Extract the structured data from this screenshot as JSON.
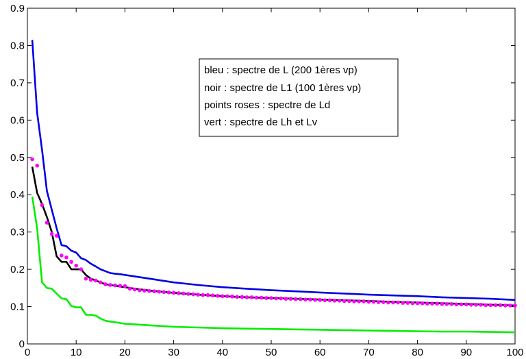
{
  "chart_data": {
    "type": "line",
    "title": "",
    "xlabel": "",
    "ylabel": "",
    "xlim": [
      0,
      100
    ],
    "ylim": [
      0,
      0.9
    ],
    "x_ticks": [
      "0",
      "10",
      "20",
      "30",
      "40",
      "50",
      "60",
      "70",
      "80",
      "90",
      "100"
    ],
    "y_ticks": [
      "0",
      "0.1",
      "0.2",
      "0.3",
      "0.4",
      "0.5",
      "0.6",
      "0.7",
      "0.8",
      "0.9"
    ],
    "grid": false,
    "legend_position": "upper-center",
    "legend": [
      "bleu : spectre de L (200 1ères vp)",
      "noir : spectre de L1 (100 1ères vp)",
      "points roses : spectre de Ld",
      "vert : spectre de Lh et Lv"
    ],
    "series": [
      {
        "color": "#0000e6",
        "style": "line",
        "x": [
          1,
          2,
          3,
          4,
          5,
          6,
          7,
          8,
          9,
          10,
          11,
          12,
          13,
          14,
          15,
          16,
          17,
          18,
          19,
          20,
          25,
          30,
          35,
          40,
          45,
          50,
          55,
          60,
          65,
          70,
          75,
          80,
          85,
          90,
          95,
          100
        ],
        "values": [
          0.815,
          0.62,
          0.52,
          0.41,
          0.36,
          0.31,
          0.265,
          0.262,
          0.25,
          0.245,
          0.23,
          0.225,
          0.215,
          0.208,
          0.2,
          0.195,
          0.19,
          0.188,
          0.187,
          0.185,
          0.175,
          0.165,
          0.158,
          0.152,
          0.148,
          0.144,
          0.141,
          0.138,
          0.135,
          0.132,
          0.13,
          0.128,
          0.125,
          0.123,
          0.121,
          0.118
        ]
      },
      {
        "color": "#000000",
        "style": "line",
        "x": [
          1,
          2,
          3,
          4,
          5,
          6,
          7,
          8,
          9,
          10,
          11,
          12,
          13,
          14,
          15,
          16,
          17,
          18,
          19,
          20,
          22,
          25,
          30,
          35,
          40,
          45,
          50,
          55,
          60,
          65,
          70,
          75,
          80,
          85,
          90,
          95,
          100
        ],
        "values": [
          0.475,
          0.405,
          0.375,
          0.34,
          0.3,
          0.235,
          0.22,
          0.22,
          0.2,
          0.2,
          0.2,
          0.185,
          0.175,
          0.17,
          0.165,
          0.16,
          0.158,
          0.156,
          0.154,
          0.152,
          0.148,
          0.143,
          0.137,
          0.132,
          0.128,
          0.125,
          0.123,
          0.121,
          0.119,
          0.117,
          0.115,
          0.113,
          0.111,
          0.109,
          0.107,
          0.105,
          0.103
        ]
      },
      {
        "color": "#ff00ff",
        "style": "dots",
        "x": [
          1,
          2,
          3,
          4,
          5,
          6,
          7,
          8,
          9,
          10,
          11,
          12,
          13,
          14,
          15,
          16,
          17,
          18,
          19,
          20,
          21,
          22,
          23,
          24,
          25,
          26,
          27,
          28,
          29,
          30,
          31,
          32,
          33,
          34,
          35,
          36,
          37,
          38,
          39,
          40,
          41,
          42,
          43,
          44,
          45,
          46,
          47,
          48,
          49,
          50,
          51,
          52,
          53,
          54,
          55,
          56,
          57,
          58,
          59,
          60,
          61,
          62,
          63,
          64,
          65,
          66,
          67,
          68,
          69,
          70,
          71,
          72,
          73,
          74,
          75,
          76,
          77,
          78,
          79,
          80,
          81,
          82,
          83,
          84,
          85,
          86,
          87,
          88,
          89,
          90,
          91,
          92,
          93,
          94,
          95,
          96,
          97,
          98,
          99,
          100
        ],
        "values": [
          0.495,
          0.478,
          0.372,
          0.325,
          0.295,
          0.29,
          0.237,
          0.232,
          0.22,
          0.21,
          0.2,
          0.175,
          0.172,
          0.17,
          0.165,
          0.16,
          0.158,
          0.157,
          0.156,
          0.155,
          0.148,
          0.146,
          0.144,
          0.143,
          0.142,
          0.141,
          0.14,
          0.139,
          0.138,
          0.137,
          0.136,
          0.135,
          0.134,
          0.133,
          0.132,
          0.131,
          0.131,
          0.13,
          0.129,
          0.128,
          0.128,
          0.127,
          0.126,
          0.126,
          0.125,
          0.125,
          0.124,
          0.124,
          0.123,
          0.123,
          0.122,
          0.122,
          0.121,
          0.121,
          0.12,
          0.12,
          0.119,
          0.119,
          0.118,
          0.118,
          0.117,
          0.117,
          0.116,
          0.116,
          0.115,
          0.115,
          0.114,
          0.114,
          0.114,
          0.113,
          0.113,
          0.112,
          0.112,
          0.111,
          0.111,
          0.111,
          0.11,
          0.11,
          0.109,
          0.109,
          0.109,
          0.108,
          0.108,
          0.108,
          0.107,
          0.107,
          0.107,
          0.106,
          0.106,
          0.106,
          0.105,
          0.105,
          0.105,
          0.104,
          0.104,
          0.104,
          0.104,
          0.103,
          0.103,
          0.103
        ]
      },
      {
        "color": "#00ee00",
        "style": "line",
        "x": [
          1,
          2,
          3,
          4,
          5,
          6,
          7,
          8,
          9,
          10,
          11,
          12,
          13,
          14,
          15,
          16,
          17,
          18,
          19,
          20,
          25,
          30,
          35,
          40,
          45,
          50,
          55,
          60,
          65,
          70,
          75,
          80,
          85,
          90,
          95,
          100
        ],
        "values": [
          0.395,
          0.31,
          0.165,
          0.15,
          0.148,
          0.135,
          0.122,
          0.12,
          0.102,
          0.098,
          0.098,
          0.078,
          0.078,
          0.076,
          0.068,
          0.062,
          0.06,
          0.058,
          0.056,
          0.054,
          0.05,
          0.046,
          0.044,
          0.042,
          0.041,
          0.04,
          0.039,
          0.038,
          0.037,
          0.036,
          0.035,
          0.034,
          0.033,
          0.033,
          0.032,
          0.031
        ]
      }
    ]
  }
}
